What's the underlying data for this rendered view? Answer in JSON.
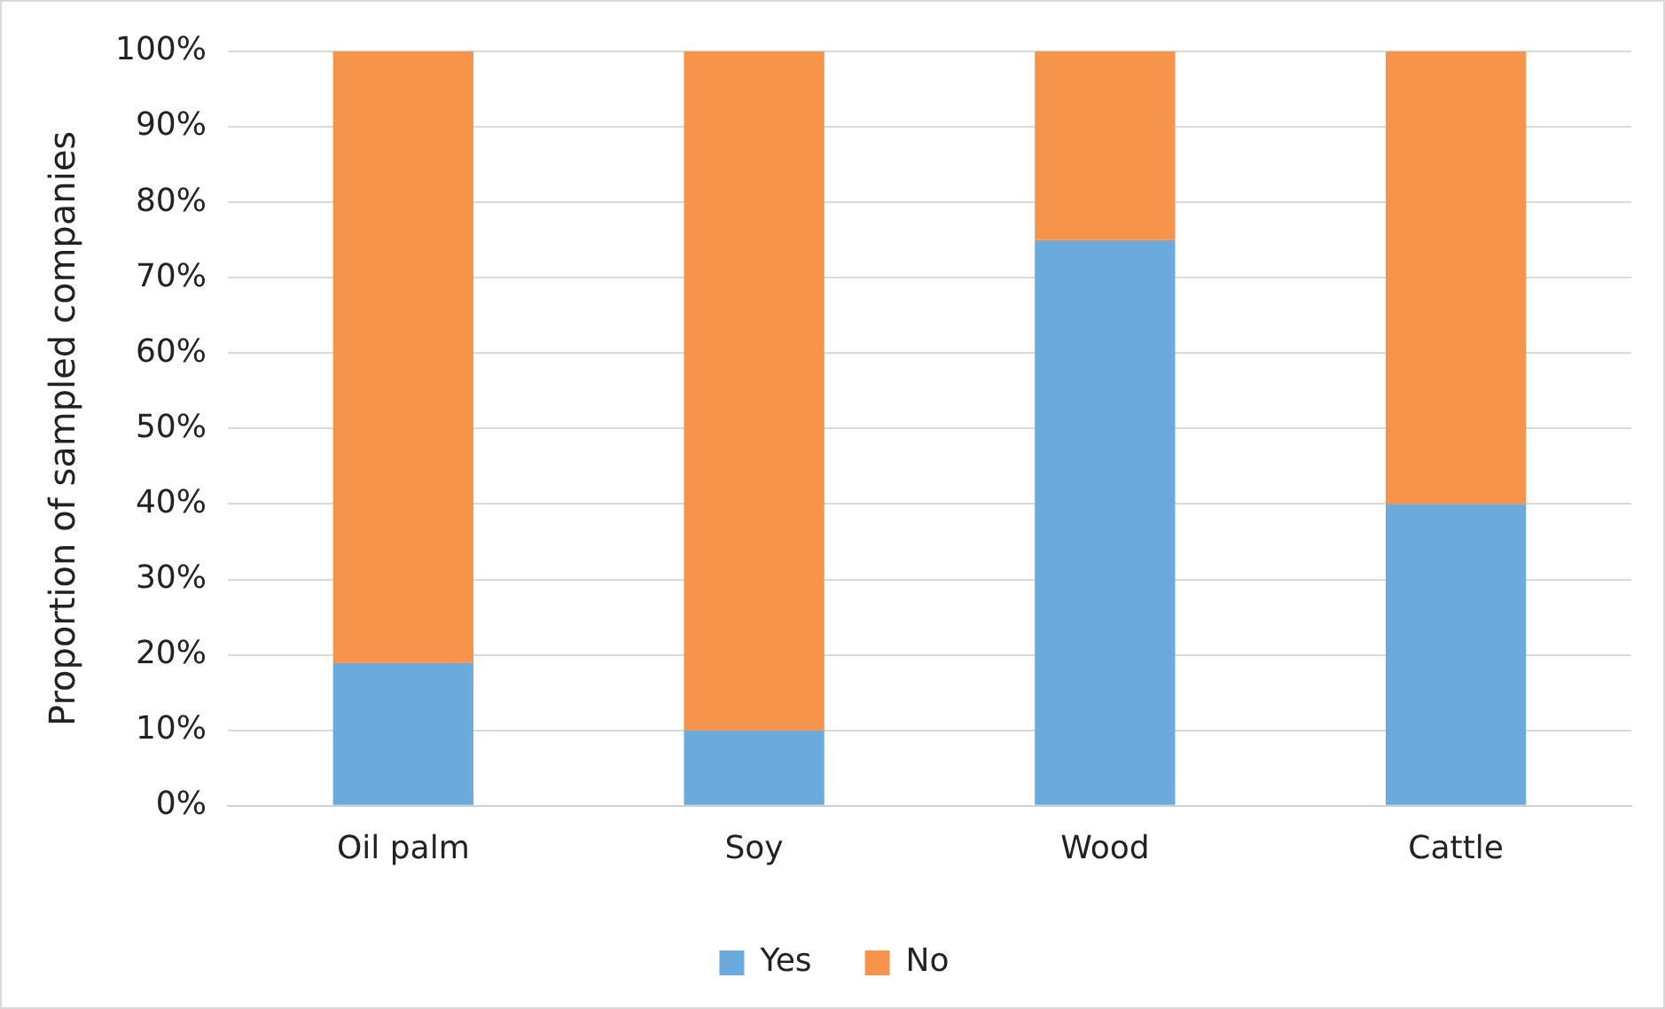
{
  "chart_data": {
    "type": "bar",
    "stacked": true,
    "ylabel": "Proportion of sampled companies",
    "categories": [
      "Oil palm",
      "Soy",
      "Wood",
      "Cattle"
    ],
    "series": [
      {
        "name": "Yes",
        "color": "#6aaadc",
        "values": [
          19,
          10,
          75,
          40
        ]
      },
      {
        "name": "No",
        "color": "#f5944a",
        "values": [
          81,
          90,
          25,
          60
        ]
      }
    ],
    "ylim": [
      0,
      100
    ],
    "yticks": [
      {
        "value": 0,
        "label": "0%"
      },
      {
        "value": 10,
        "label": "10%"
      },
      {
        "value": 20,
        "label": "20%"
      },
      {
        "value": 30,
        "label": "30%"
      },
      {
        "value": 40,
        "label": "40%"
      },
      {
        "value": 50,
        "label": "50%"
      },
      {
        "value": 60,
        "label": "60%"
      },
      {
        "value": 70,
        "label": "70%"
      },
      {
        "value": 80,
        "label": "80%"
      },
      {
        "value": 90,
        "label": "90%"
      },
      {
        "value": 100,
        "label": "100%"
      }
    ],
    "grid": "y",
    "legend": "bottom"
  }
}
